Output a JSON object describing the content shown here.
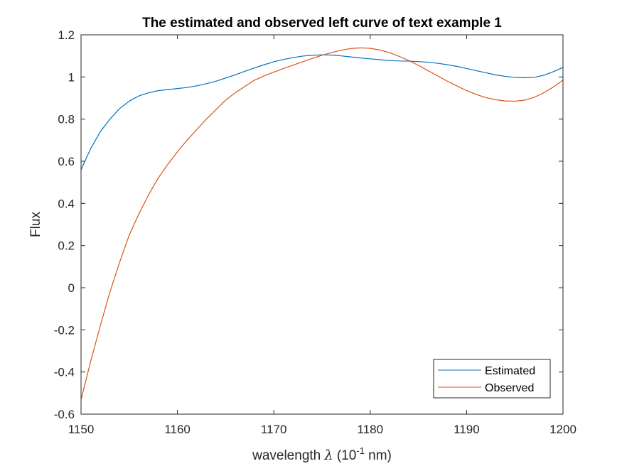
{
  "chart_data": {
    "type": "line",
    "title": "The estimated and observed left curve of text example 1",
    "xlabel_prefix": "wavelength ",
    "xlabel_symbol": "λ",
    "xlabel_open": " (10",
    "xlabel_exp": "-1",
    "xlabel_unit": " nm)",
    "ylabel": "Flux",
    "xlim": [
      1150,
      1200
    ],
    "ylim": [
      -0.6,
      1.2
    ],
    "xticks": [
      1150,
      1160,
      1170,
      1180,
      1190,
      1200
    ],
    "yticks": [
      -0.6,
      -0.4,
      -0.2,
      0,
      0.2,
      0.4,
      0.6,
      0.8,
      1,
      1.2
    ],
    "ytick_labels": [
      "-0.6",
      "-0.4",
      "-0.2",
      "0",
      "0.2",
      "0.4",
      "0.6",
      "0.8",
      "1",
      "1.2"
    ],
    "grid": false,
    "legend_position": "bottom-right",
    "series": [
      {
        "name": "Estimated",
        "color": "#0072BD",
        "x": [
          1150,
          1151,
          1152,
          1153,
          1154,
          1155,
          1156,
          1157,
          1158,
          1159,
          1160,
          1161,
          1162,
          1163,
          1164,
          1165,
          1166,
          1167,
          1168,
          1169,
          1170,
          1171,
          1172,
          1173,
          1174,
          1175,
          1176,
          1177,
          1178,
          1179,
          1180,
          1181,
          1182,
          1183,
          1184,
          1185,
          1186,
          1187,
          1188,
          1189,
          1190,
          1191,
          1192,
          1193,
          1194,
          1195,
          1196,
          1197,
          1198,
          1199,
          1200
        ],
        "y": [
          0.56,
          0.66,
          0.74,
          0.8,
          0.85,
          0.885,
          0.91,
          0.925,
          0.935,
          0.94,
          0.945,
          0.95,
          0.958,
          0.968,
          0.98,
          0.995,
          1.01,
          1.027,
          1.043,
          1.058,
          1.072,
          1.083,
          1.092,
          1.099,
          1.103,
          1.105,
          1.104,
          1.1,
          1.095,
          1.09,
          1.086,
          1.082,
          1.078,
          1.076,
          1.075,
          1.073,
          1.07,
          1.065,
          1.058,
          1.05,
          1.04,
          1.03,
          1.02,
          1.01,
          1.003,
          0.998,
          0.996,
          0.998,
          1.008,
          1.025,
          1.045
        ]
      },
      {
        "name": "Observed",
        "color": "#D95319",
        "x": [
          1150,
          1151,
          1152,
          1153,
          1154,
          1155,
          1156,
          1157,
          1158,
          1159,
          1160,
          1161,
          1162,
          1163,
          1164,
          1165,
          1166,
          1167,
          1168,
          1169,
          1170,
          1171,
          1172,
          1173,
          1174,
          1175,
          1176,
          1177,
          1178,
          1179,
          1180,
          1181,
          1182,
          1183,
          1184,
          1185,
          1186,
          1187,
          1188,
          1189,
          1190,
          1191,
          1192,
          1193,
          1194,
          1195,
          1196,
          1197,
          1198,
          1199,
          1200
        ],
        "y": [
          -0.53,
          -0.35,
          -0.18,
          -0.02,
          0.12,
          0.25,
          0.35,
          0.44,
          0.52,
          0.585,
          0.645,
          0.7,
          0.75,
          0.8,
          0.845,
          0.89,
          0.925,
          0.955,
          0.985,
          1.005,
          1.023,
          1.04,
          1.056,
          1.072,
          1.088,
          1.103,
          1.116,
          1.127,
          1.135,
          1.138,
          1.136,
          1.128,
          1.115,
          1.098,
          1.078,
          1.055,
          1.03,
          1.005,
          0.98,
          0.957,
          0.935,
          0.917,
          0.902,
          0.892,
          0.886,
          0.885,
          0.89,
          0.903,
          0.925,
          0.952,
          0.985
        ]
      }
    ]
  }
}
